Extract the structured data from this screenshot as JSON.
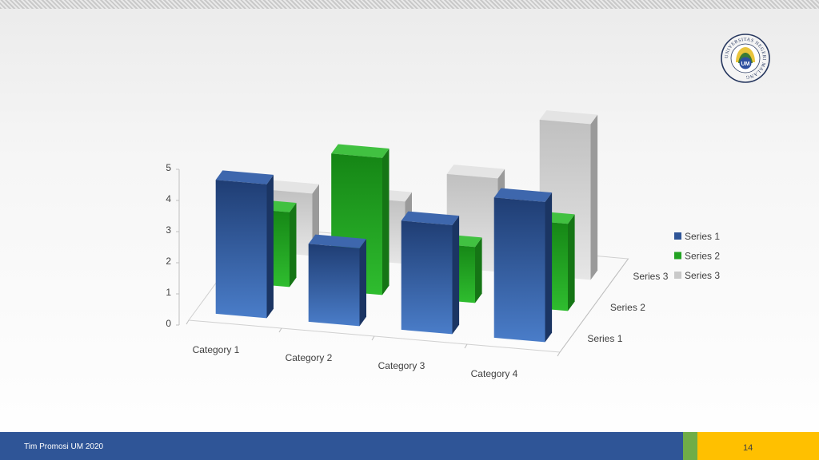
{
  "footer": {
    "left_text": "Tim Promosi UM 2020",
    "page_number": "14",
    "ghost_page_number": "14"
  },
  "logo": {
    "text": "UNIVERSITAS NEGERI MALANG",
    "mark": "UM"
  },
  "colors": {
    "series1": "#2f5597",
    "series2": "#22a222",
    "series3": "#c9c9c9",
    "footer_blue": "#2f5597",
    "footer_green": "#70ad47",
    "footer_gold": "#ffc000"
  },
  "chart_data": {
    "type": "bar",
    "subtype": "3d-column",
    "categories": [
      "Category 1",
      "Category 2",
      "Category 3",
      "Category 4"
    ],
    "series": [
      {
        "name": "Series 1",
        "values": [
          4.3,
          2.5,
          3.5,
          4.5
        ]
      },
      {
        "name": "Series 2",
        "values": [
          2.4,
          4.4,
          1.8,
          2.8
        ]
      },
      {
        "name": "Series 3",
        "values": [
          2,
          2,
          3,
          5
        ]
      }
    ],
    "depth_labels": [
      "Series 3",
      "Series 2",
      "Series 1"
    ],
    "yticks": [
      0,
      1,
      2,
      3,
      4,
      5
    ],
    "ylim": [
      0,
      5
    ],
    "legend_position": "right"
  }
}
